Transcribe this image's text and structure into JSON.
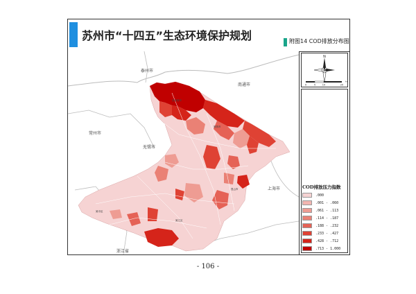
{
  "document": {
    "title": "苏州市“十四五”生态环境保护规划",
    "figure_label": "附图14 COD排放分布图",
    "page_number": "- 106 -"
  },
  "colors": {
    "title_accent": "#1f8fe0",
    "figure_marker": "#1aa58a",
    "border": "#333333"
  },
  "map": {
    "neighbor_labels": {
      "taizhou": "泰州市",
      "nantong": "南通市",
      "changzhou": "常州市",
      "wuxi": "无锡市",
      "shanghai": "上海市",
      "zhejiang": "浙江省"
    },
    "inner_labels": {
      "zhangjiagang": "张家港市",
      "kunshan": "昆山市",
      "wujiang": "吴江区",
      "wuzhong": "吴中区",
      "changshu": "常熟市"
    }
  },
  "compass": {
    "icon": "north-arrow-icon",
    "north": "N",
    "scale_ticks": [
      "0",
      "5",
      "10",
      "20"
    ],
    "scale_unit": "km"
  },
  "legend": {
    "title": "COD排放压力指数",
    "items": [
      {
        "label": ".000",
        "color": "#f6d3d3"
      },
      {
        "label": ".001 - .060",
        "color": "#f2b6b1"
      },
      {
        "label": ".061 - .113",
        "color": "#ee9c93"
      },
      {
        "label": ".114 - .187",
        "color": "#ea8175"
      },
      {
        "label": ".188 - .232",
        "color": "#e56256"
      },
      {
        "label": ".233 - .427",
        "color": "#df4234"
      },
      {
        "label": ".428 - .712",
        "color": "#d5241a"
      },
      {
        "label": ".713 - 1.000",
        "color": "#c00000"
      }
    ]
  }
}
